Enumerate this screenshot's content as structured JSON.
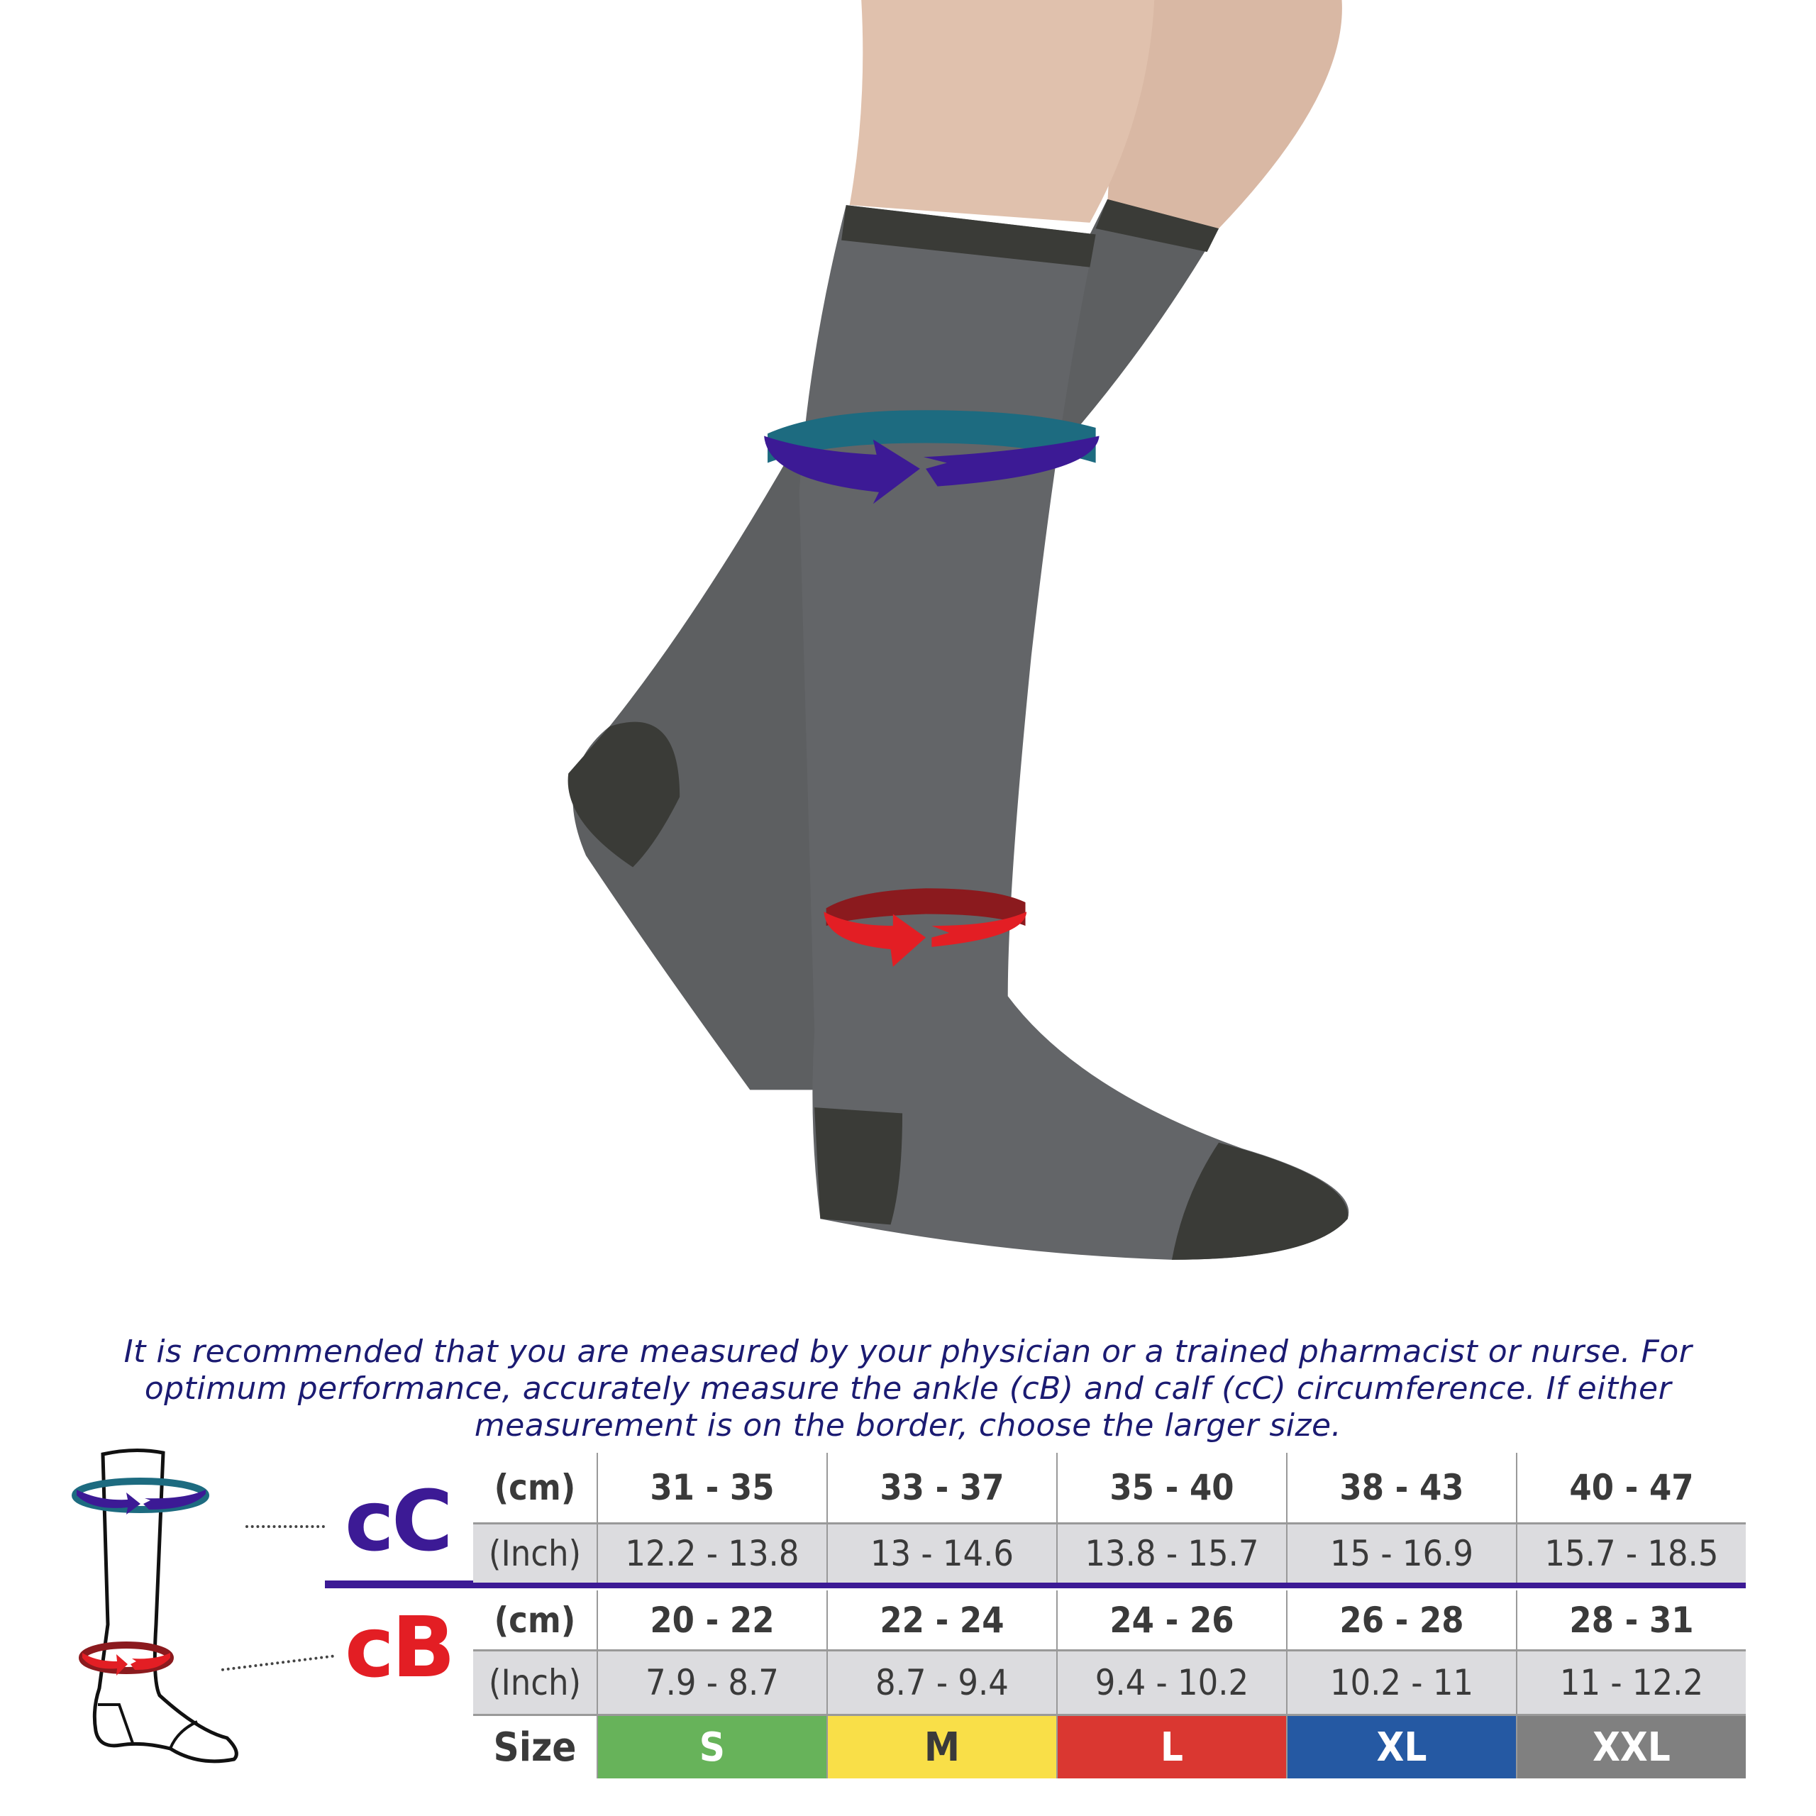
{
  "instructions": "It is recommended that you are measured by your physician or a trained pharmacist or nurse. For optimum performance, accurately measure the ankle (cB) and calf (cC) circumference. If either measurement is on the border, choose the larger size.",
  "labels": {
    "calf": "cC",
    "ankle": "cB",
    "cm": "(cm)",
    "inch": "(Inch)",
    "size": "Size"
  },
  "colors": {
    "calf": "#3c1a95",
    "ankle": "#e31e24",
    "sock": "#5d5f61",
    "sock_dark": "#3a3b37"
  },
  "calf_cm": [
    "31 - 35",
    "33 - 37",
    "35 - 40",
    "38 - 43",
    "40 - 47"
  ],
  "calf_inch": [
    "12.2 - 13.8",
    "13 - 14.6",
    "13.8 - 15.7",
    "15 - 16.9",
    "15.7 - 18.5"
  ],
  "ankle_cm": [
    "20 - 22",
    "22 - 24",
    "24 - 26",
    "26 - 28",
    "28 - 31"
  ],
  "ankle_inch": [
    "7.9 - 8.7",
    "8.7 - 9.4",
    "9.4 - 10.2",
    "10.2 - 11",
    "11 - 12.2"
  ],
  "sizes": [
    {
      "label": "S",
      "color": "#67b35a"
    },
    {
      "label": "M",
      "color": "#f9df48",
      "text_color": "#3a3a3a"
    },
    {
      "label": "L",
      "color": "#da3731"
    },
    {
      "label": "XL",
      "color": "#2559a3"
    },
    {
      "label": "XXL",
      "color": "#808080"
    }
  ]
}
